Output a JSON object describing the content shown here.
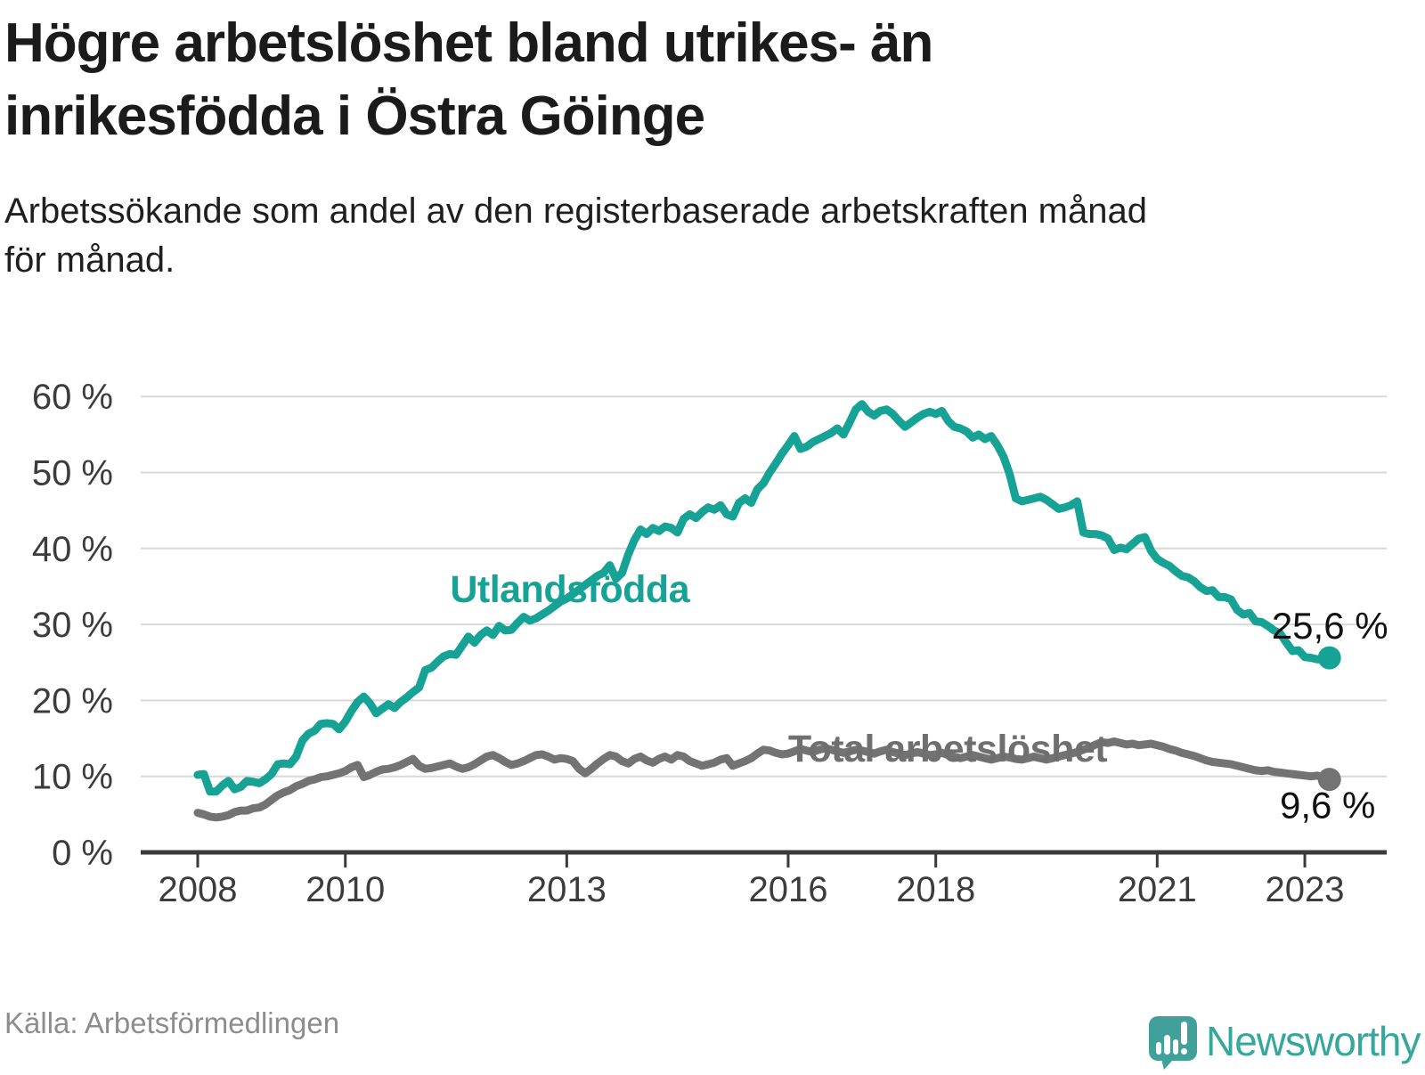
{
  "header": {
    "title_lines": [
      "Högre arbetslöshet bland utrikes- än",
      "inrikesfödda i Östra Göinge"
    ],
    "subtitle_lines": [
      "Arbetssökande som andel av den registerbaserade arbetskraften månad",
      "för månad."
    ]
  },
  "footer": {
    "source": "Källa: Arbetsförmedlingen",
    "brand": "Newsworthy"
  },
  "colors": {
    "teal": "#16a294",
    "gray": "#737373",
    "gray_label": "#6f6f6f",
    "axis": "#3a3a3a",
    "ticklabel": "#3c3c3c",
    "grid": "#d9d9d9",
    "title": "#1b1b1b",
    "subtitle": "#1f1f1f",
    "value_label": "#111111",
    "source": "#8d8d8d",
    "logo_pin": "#42a09a",
    "logo_text": "#35a89c"
  },
  "chart_data": {
    "type": "line",
    "title": "Högre arbetslöshet bland utrikes- än inrikesfödda i Östra Göinge",
    "subtitle": "Arbetssökande som andel av den registerbaserade arbetskraften månad för månad.",
    "source": "Källa: Arbetsförmedlingen",
    "xlabel": "",
    "ylabel": "",
    "ylim": [
      0,
      62
    ],
    "grid": true,
    "legend_position": "inline-labels",
    "x_start": {
      "year": 2008,
      "month": 1
    },
    "x_interval": "monthly",
    "yticks": [
      {
        "value": 0,
        "label": "0 %"
      },
      {
        "value": 10,
        "label": "10 %"
      },
      {
        "value": 20,
        "label": "20 %"
      },
      {
        "value": 30,
        "label": "30 %"
      },
      {
        "value": 40,
        "label": "40 %"
      },
      {
        "value": 50,
        "label": "50 %"
      },
      {
        "value": 60,
        "label": "60 %"
      }
    ],
    "xticks": [
      {
        "year": 2008,
        "label": "2008"
      },
      {
        "year": 2010,
        "label": "2010"
      },
      {
        "year": 2013,
        "label": "2013"
      },
      {
        "year": 2016,
        "label": "2016"
      },
      {
        "year": 2018,
        "label": "2018"
      },
      {
        "year": 2021,
        "label": "2021"
      },
      {
        "year": 2023,
        "label": "2023"
      }
    ],
    "series": [
      {
        "id": "utlandsfodda",
        "name": "Utlandsfödda",
        "color": "#16a294",
        "end_value": 25.6,
        "end_label": "25,6 %",
        "values": [
          10.2,
          10.3,
          8.0,
          8.0,
          8.8,
          9.4,
          8.3,
          8.6,
          9.4,
          9.3,
          9.1,
          9.6,
          10.3,
          11.6,
          11.7,
          11.6,
          12.6,
          14.7,
          15.6,
          16.0,
          16.9,
          17.0,
          16.9,
          16.2,
          17.2,
          18.6,
          19.8,
          20.5,
          19.6,
          18.3,
          18.9,
          19.5,
          19.0,
          19.8,
          20.4,
          21.1,
          21.7,
          24.0,
          24.3,
          25.1,
          25.8,
          26.1,
          26.0,
          27.2,
          28.4,
          27.6,
          28.6,
          29.2,
          28.6,
          29.8,
          29.2,
          29.3,
          30.2,
          31.0,
          30.5,
          30.8,
          31.3,
          31.8,
          32.4,
          33.0,
          33.4,
          34.0,
          34.6,
          35.2,
          35.8,
          36.4,
          36.8,
          37.8,
          36.0,
          36.8,
          39.2,
          41.1,
          42.5,
          41.9,
          42.7,
          42.3,
          42.9,
          42.7,
          42.1,
          43.9,
          44.5,
          44.0,
          44.8,
          45.4,
          45.1,
          45.7,
          44.5,
          44.2,
          46.0,
          46.6,
          46.0,
          47.8,
          48.6,
          50.0,
          51.2,
          52.5,
          53.6,
          54.8,
          53.1,
          53.4,
          54.0,
          54.4,
          54.8,
          55.2,
          55.8,
          55.0,
          56.6,
          58.3,
          59.0,
          58.0,
          57.5,
          58.1,
          58.3,
          57.7,
          56.8,
          56.0,
          56.6,
          57.2,
          57.7,
          58.0,
          57.7,
          58.1,
          56.8,
          56.0,
          55.8,
          55.4,
          54.6,
          55.0,
          54.4,
          54.8,
          53.6,
          52.1,
          49.8,
          46.6,
          46.2,
          46.4,
          46.6,
          46.8,
          46.4,
          45.8,
          45.2,
          45.4,
          45.7,
          46.2,
          42.1,
          41.9,
          41.9,
          41.7,
          41.3,
          39.8,
          40.1,
          39.9,
          40.6,
          41.3,
          41.5,
          39.7,
          38.6,
          38.1,
          37.7,
          37.0,
          36.4,
          36.2,
          35.7,
          34.9,
          34.4,
          34.5,
          33.6,
          33.6,
          33.3,
          31.9,
          31.3,
          31.5,
          30.4,
          30.3,
          29.8,
          29.2,
          28.8,
          27.6,
          26.5,
          26.6,
          25.7,
          25.6,
          25.4,
          25.4,
          25.6
        ]
      },
      {
        "id": "total",
        "name": "Total arbetslöshet",
        "color": "#737373",
        "end_value": 9.6,
        "end_label": "9,6 %",
        "values": [
          5.2,
          5.0,
          4.7,
          4.6,
          4.7,
          4.9,
          5.3,
          5.5,
          5.5,
          5.8,
          5.9,
          6.3,
          6.9,
          7.5,
          7.9,
          8.2,
          8.7,
          9.0,
          9.4,
          9.6,
          9.9,
          10.0,
          10.2,
          10.4,
          10.7,
          11.2,
          11.5,
          9.9,
          10.2,
          10.6,
          10.9,
          11.0,
          11.2,
          11.5,
          11.9,
          12.3,
          11.4,
          11.0,
          11.1,
          11.3,
          11.5,
          11.7,
          11.3,
          11.0,
          11.2,
          11.6,
          12.1,
          12.6,
          12.8,
          12.4,
          11.9,
          11.5,
          11.7,
          12.0,
          12.4,
          12.8,
          12.9,
          12.6,
          12.2,
          12.4,
          12.3,
          12.0,
          11.0,
          10.4,
          11.0,
          11.7,
          12.3,
          12.8,
          12.6,
          12.0,
          11.7,
          12.3,
          12.6,
          12.1,
          11.8,
          12.3,
          12.6,
          12.2,
          12.8,
          12.6,
          12.0,
          11.7,
          11.4,
          11.6,
          11.8,
          12.2,
          12.4,
          11.4,
          11.7,
          12.0,
          12.4,
          13.0,
          13.5,
          13.4,
          13.1,
          12.9,
          13.0,
          13.3,
          13.6,
          13.4,
          13.2,
          13.5,
          13.7,
          13.5,
          13.3,
          13.1,
          13.3,
          13.5,
          13.4,
          13.2,
          13.0,
          13.3,
          13.5,
          13.2,
          13.0,
          12.8,
          13.0,
          13.2,
          13.0,
          12.8,
          12.9,
          13.1,
          12.8,
          12.6,
          12.4,
          12.6,
          12.8,
          12.6,
          12.4,
          12.2,
          12.4,
          12.6,
          12.5,
          12.3,
          12.2,
          12.4,
          12.6,
          12.4,
          12.2,
          12.4,
          12.6,
          12.8,
          13.0,
          13.2,
          13.5,
          13.8,
          14.2,
          14.5,
          14.4,
          14.6,
          14.4,
          14.2,
          14.3,
          14.1,
          14.2,
          14.3,
          14.1,
          13.9,
          13.6,
          13.4,
          13.1,
          12.9,
          12.7,
          12.4,
          12.1,
          11.9,
          11.8,
          11.7,
          11.6,
          11.4,
          11.2,
          11.0,
          10.8,
          10.7,
          10.8,
          10.6,
          10.5,
          10.4,
          10.3,
          10.2,
          10.1,
          10.0,
          10.1,
          9.8,
          9.6
        ]
      }
    ],
    "annotations": [
      {
        "id": "series-label-utlandsfodda",
        "text": "Utlandsfödda",
        "year": 2013.04,
        "value": 34.7,
        "class": "series-label teal"
      },
      {
        "id": "series-label-total",
        "text": "Total arbetslöshet",
        "year": 2018.16,
        "value": 13.7,
        "class": "series-label gray"
      },
      {
        "id": "value-label-utlandsfodda",
        "text": "25,6 %",
        "year": 2023.34,
        "value": 29.9,
        "class": "value-label"
      },
      {
        "id": "value-label-total",
        "text": "9,6 %",
        "year": 2023.31,
        "value": 6.3,
        "class": "value-label"
      }
    ]
  }
}
